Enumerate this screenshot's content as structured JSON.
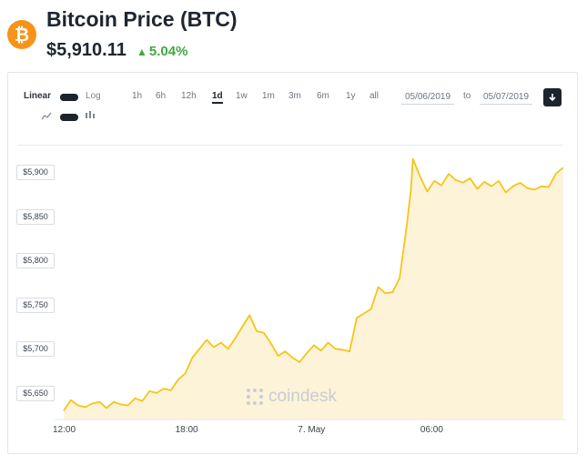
{
  "header": {
    "coin_symbol": "₿",
    "title": "Bitcoin Price (BTC)",
    "price": "$5,910.11",
    "change_arrow": "▲",
    "change": "5.04%",
    "change_color": "#3fa93f",
    "logo_color": "#f7931a"
  },
  "toolbar": {
    "scale_linear": "Linear",
    "scale_log": "Log",
    "ranges": [
      "1h",
      "6h",
      "12h",
      "1d",
      "1w",
      "1m",
      "3m",
      "6m",
      "1y",
      "all"
    ],
    "active_range": "1d",
    "date_from": "05/06/2019",
    "to_label": "to",
    "date_to": "05/07/2019"
  },
  "watermark": "coindesk",
  "chart_data": {
    "type": "area",
    "line_color": "#f5c518",
    "fill_color": "#fdf3d8",
    "grid": false,
    "y_ticks": [
      "$5,900",
      "$5,850",
      "$5,800",
      "$5,750",
      "$5,700",
      "$5,650"
    ],
    "y_tick_values": [
      5900,
      5850,
      5800,
      5750,
      5700,
      5650
    ],
    "x_ticks": [
      "12:00",
      "18:00",
      "7. May",
      "06:00"
    ],
    "x_tick_hours": [
      0,
      6,
      12,
      18
    ],
    "ylim": [
      5620,
      5930
    ],
    "xlim_hours": [
      0,
      24.6
    ],
    "x": [
      0,
      0.35,
      0.7,
      1.05,
      1.4,
      1.75,
      2.1,
      2.45,
      2.8,
      3.15,
      3.5,
      3.85,
      4.2,
      4.55,
      4.9,
      5.25,
      5.6,
      5.95,
      6.3,
      6.65,
      7.0,
      7.35,
      7.7,
      8.05,
      8.4,
      8.75,
      9.1,
      9.45,
      9.8,
      10.15,
      10.5,
      10.85,
      11.2,
      11.55,
      11.9,
      12.25,
      12.6,
      12.95,
      13.3,
      13.65,
      14.0,
      14.35,
      14.7,
      15.05,
      15.4,
      15.75,
      16.1,
      16.45,
      16.8,
      17.0,
      17.1,
      17.45,
      17.8,
      18.15,
      18.5,
      18.85,
      19.2,
      19.55,
      19.9,
      20.25,
      20.6,
      20.95,
      21.3,
      21.65,
      22.0,
      22.35,
      22.7,
      23.05,
      23.4,
      23.75,
      24.1,
      24.45
    ],
    "y": [
      5630,
      5642,
      5636,
      5634,
      5638,
      5640,
      5633,
      5640,
      5637,
      5636,
      5644,
      5641,
      5652,
      5650,
      5655,
      5653,
      5665,
      5672,
      5690,
      5700,
      5710,
      5702,
      5707,
      5700,
      5712,
      5725,
      5738,
      5720,
      5718,
      5706,
      5692,
      5697,
      5690,
      5685,
      5695,
      5704,
      5698,
      5707,
      5700,
      5699,
      5697,
      5735,
      5740,
      5745,
      5770,
      5763,
      5764,
      5780,
      5840,
      5880,
      5915,
      5895,
      5878,
      5890,
      5885,
      5898,
      5891,
      5888,
      5893,
      5881,
      5889,
      5884,
      5890,
      5877,
      5884,
      5888,
      5882,
      5880,
      5884,
      5883,
      5898,
      5905
    ]
  }
}
